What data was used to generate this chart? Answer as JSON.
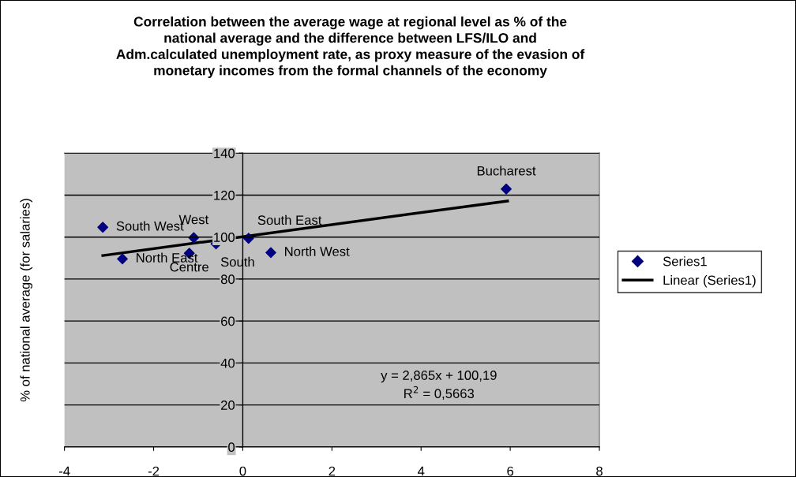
{
  "chart_data": {
    "type": "scatter",
    "title": "Correlation between the average wage at regional level as % of the national average and the difference between LFS/ILO and Adm.calculated unemployment rate, as proxy measure of the evasion of monetary incomes from the formal channels of the economy",
    "ylabel": "% of national average (for salaries)",
    "x": [
      -3.14,
      -2.7,
      -1.1,
      -1.2,
      -0.6,
      0.13,
      0.63,
      5.91
    ],
    "series": [
      {
        "name": "Series1",
        "color": "#000080",
        "marker": "diamond",
        "values": [
          104.7,
          89.6,
          99.7,
          92.3,
          96.8,
          99.4,
          92.6,
          122.9
        ]
      },
      {
        "name": "Linear (Series1)",
        "color": "#000000",
        "type": "line",
        "marker": "none",
        "line_style": "solid",
        "x": [
          -3.14,
          5.94
        ],
        "values": [
          91.2,
          117.2
        ]
      }
    ],
    "annotations": [
      {
        "text": "South West",
        "x": -3.14,
        "y": 104.7
      },
      {
        "text": "North East",
        "x": -2.7,
        "y": 89.6
      },
      {
        "text": "West",
        "x": -1.1,
        "y": 99.7
      },
      {
        "text": "Centre",
        "x": -1.2,
        "y": 92.3
      },
      {
        "text": "South",
        "x": -0.6,
        "y": 96.8
      },
      {
        "text": "South East",
        "x": 0.13,
        "y": 99.4
      },
      {
        "text": "North West",
        "x": 0.63,
        "y": 92.6
      },
      {
        "text": "Bucharest",
        "x": 5.91,
        "y": 122.9
      },
      "y = 2,865x + 100,19",
      "R$^{2}$ = 0,5663"
    ],
    "xlim": [
      -4,
      8
    ],
    "xticks": [
      -4,
      -2,
      0,
      2,
      4,
      6,
      8
    ],
    "ylim": [
      0,
      140
    ],
    "yticks": [
      0,
      20,
      40,
      60,
      80,
      100,
      120,
      140
    ],
    "grid": "y",
    "legend": "right"
  }
}
